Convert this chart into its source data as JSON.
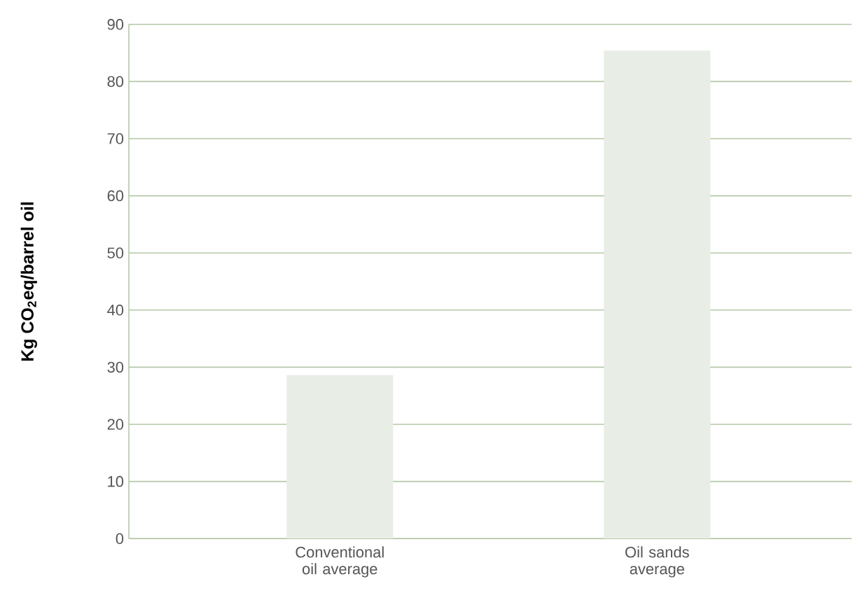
{
  "chart_data": {
    "type": "bar",
    "ylabel": "Kg CO$_{2}$eq/barrel oil",
    "categories": [
      "Conventional oil average",
      "Oil sands average"
    ],
    "values": [
      28.6,
      85.4
    ],
    "color": "#e8ede6",
    "ylim": [
      0,
      90
    ],
    "yticks": [
      0,
      10,
      20,
      30,
      40,
      50,
      60,
      70,
      80,
      90
    ],
    "grid": "y"
  }
}
